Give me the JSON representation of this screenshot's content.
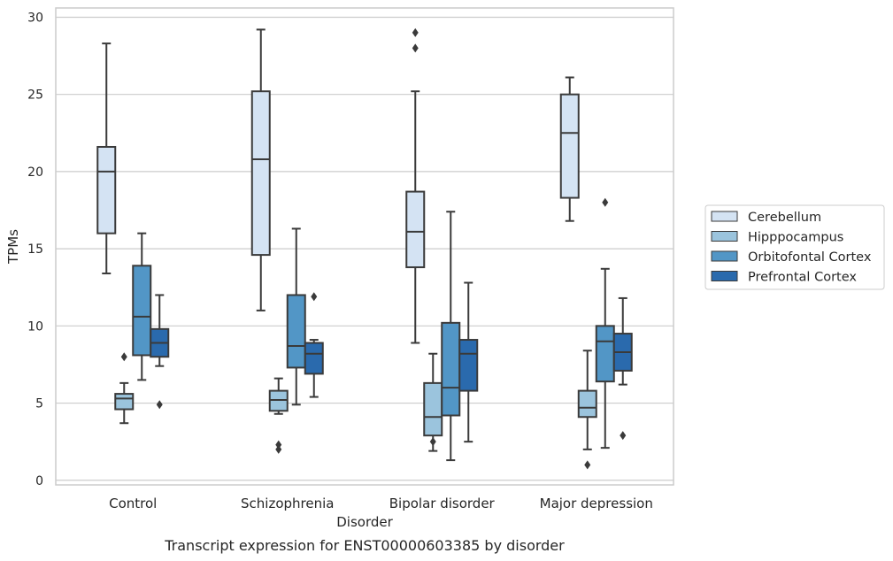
{
  "chart_data": {
    "type": "boxplot",
    "caption": "Transcript expression for ENST00000603385 by disorder",
    "xlabel": "Disorder",
    "ylabel": "TPMs",
    "ylim": [
      -0.3,
      30.6
    ],
    "yticks": [
      0,
      5,
      10,
      15,
      20,
      25,
      30
    ],
    "grid": "horizontal",
    "legend_position": "right",
    "categories": [
      "Control",
      "Schizophrenia",
      "Bipolar disorder",
      "Major depression"
    ],
    "series": [
      {
        "name": "Cerebellum",
        "color": "#d4e3f3",
        "boxes": [
          {
            "whislo": 13.4,
            "q1": 16.0,
            "med": 20.0,
            "q3": 21.6,
            "whishi": 28.3,
            "fliers": []
          },
          {
            "whislo": 11.0,
            "q1": 14.6,
            "med": 20.8,
            "q3": 25.2,
            "whishi": 29.2,
            "fliers": []
          },
          {
            "whislo": 8.9,
            "q1": 13.8,
            "med": 16.1,
            "q3": 18.7,
            "whishi": 25.2,
            "fliers": [
              28.0,
              29.0
            ]
          },
          {
            "whislo": 16.8,
            "q1": 18.3,
            "med": 22.5,
            "q3": 25.0,
            "whishi": 26.1,
            "fliers": []
          }
        ]
      },
      {
        "name": "Hipppocampus",
        "color": "#9bc4dd",
        "boxes": [
          {
            "whislo": 3.7,
            "q1": 4.6,
            "med": 5.3,
            "q3": 5.6,
            "whishi": 6.3,
            "fliers": [
              8.0
            ]
          },
          {
            "whislo": 4.3,
            "q1": 4.5,
            "med": 5.2,
            "q3": 5.8,
            "whishi": 6.6,
            "fliers": [
              2.0,
              2.3
            ]
          },
          {
            "whislo": 1.9,
            "q1": 2.9,
            "med": 4.1,
            "q3": 6.3,
            "whishi": 8.2,
            "fliers": [
              2.5
            ]
          },
          {
            "whislo": 2.0,
            "q1": 4.1,
            "med": 4.7,
            "q3": 5.8,
            "whishi": 8.4,
            "fliers": [
              1.0
            ]
          }
        ]
      },
      {
        "name": "Orbitofontal Cortex",
        "color": "#5296c6",
        "boxes": [
          {
            "whislo": 6.5,
            "q1": 8.1,
            "med": 10.6,
            "q3": 13.9,
            "whishi": 16.0,
            "fliers": []
          },
          {
            "whislo": 4.9,
            "q1": 7.3,
            "med": 8.7,
            "q3": 12.0,
            "whishi": 16.3,
            "fliers": []
          },
          {
            "whislo": 1.3,
            "q1": 4.2,
            "med": 6.0,
            "q3": 10.2,
            "whishi": 17.4,
            "fliers": []
          },
          {
            "whislo": 2.1,
            "q1": 6.4,
            "med": 9.0,
            "q3": 10.0,
            "whishi": 13.7,
            "fliers": [
              18.0
            ]
          }
        ]
      },
      {
        "name": "Prefrontal Cortex",
        "color": "#2a6aad",
        "boxes": [
          {
            "whislo": 7.4,
            "q1": 8.0,
            "med": 8.9,
            "q3": 9.8,
            "whishi": 12.0,
            "fliers": [
              4.9
            ]
          },
          {
            "whislo": 5.4,
            "q1": 6.9,
            "med": 8.2,
            "q3": 8.9,
            "whishi": 9.1,
            "fliers": [
              11.9
            ]
          },
          {
            "whislo": 2.5,
            "q1": 5.8,
            "med": 8.2,
            "q3": 9.1,
            "whishi": 12.8,
            "fliers": []
          },
          {
            "whislo": 6.2,
            "q1": 7.1,
            "med": 8.3,
            "q3": 9.5,
            "whishi": 11.8,
            "fliers": [
              2.9
            ]
          }
        ]
      }
    ]
  }
}
